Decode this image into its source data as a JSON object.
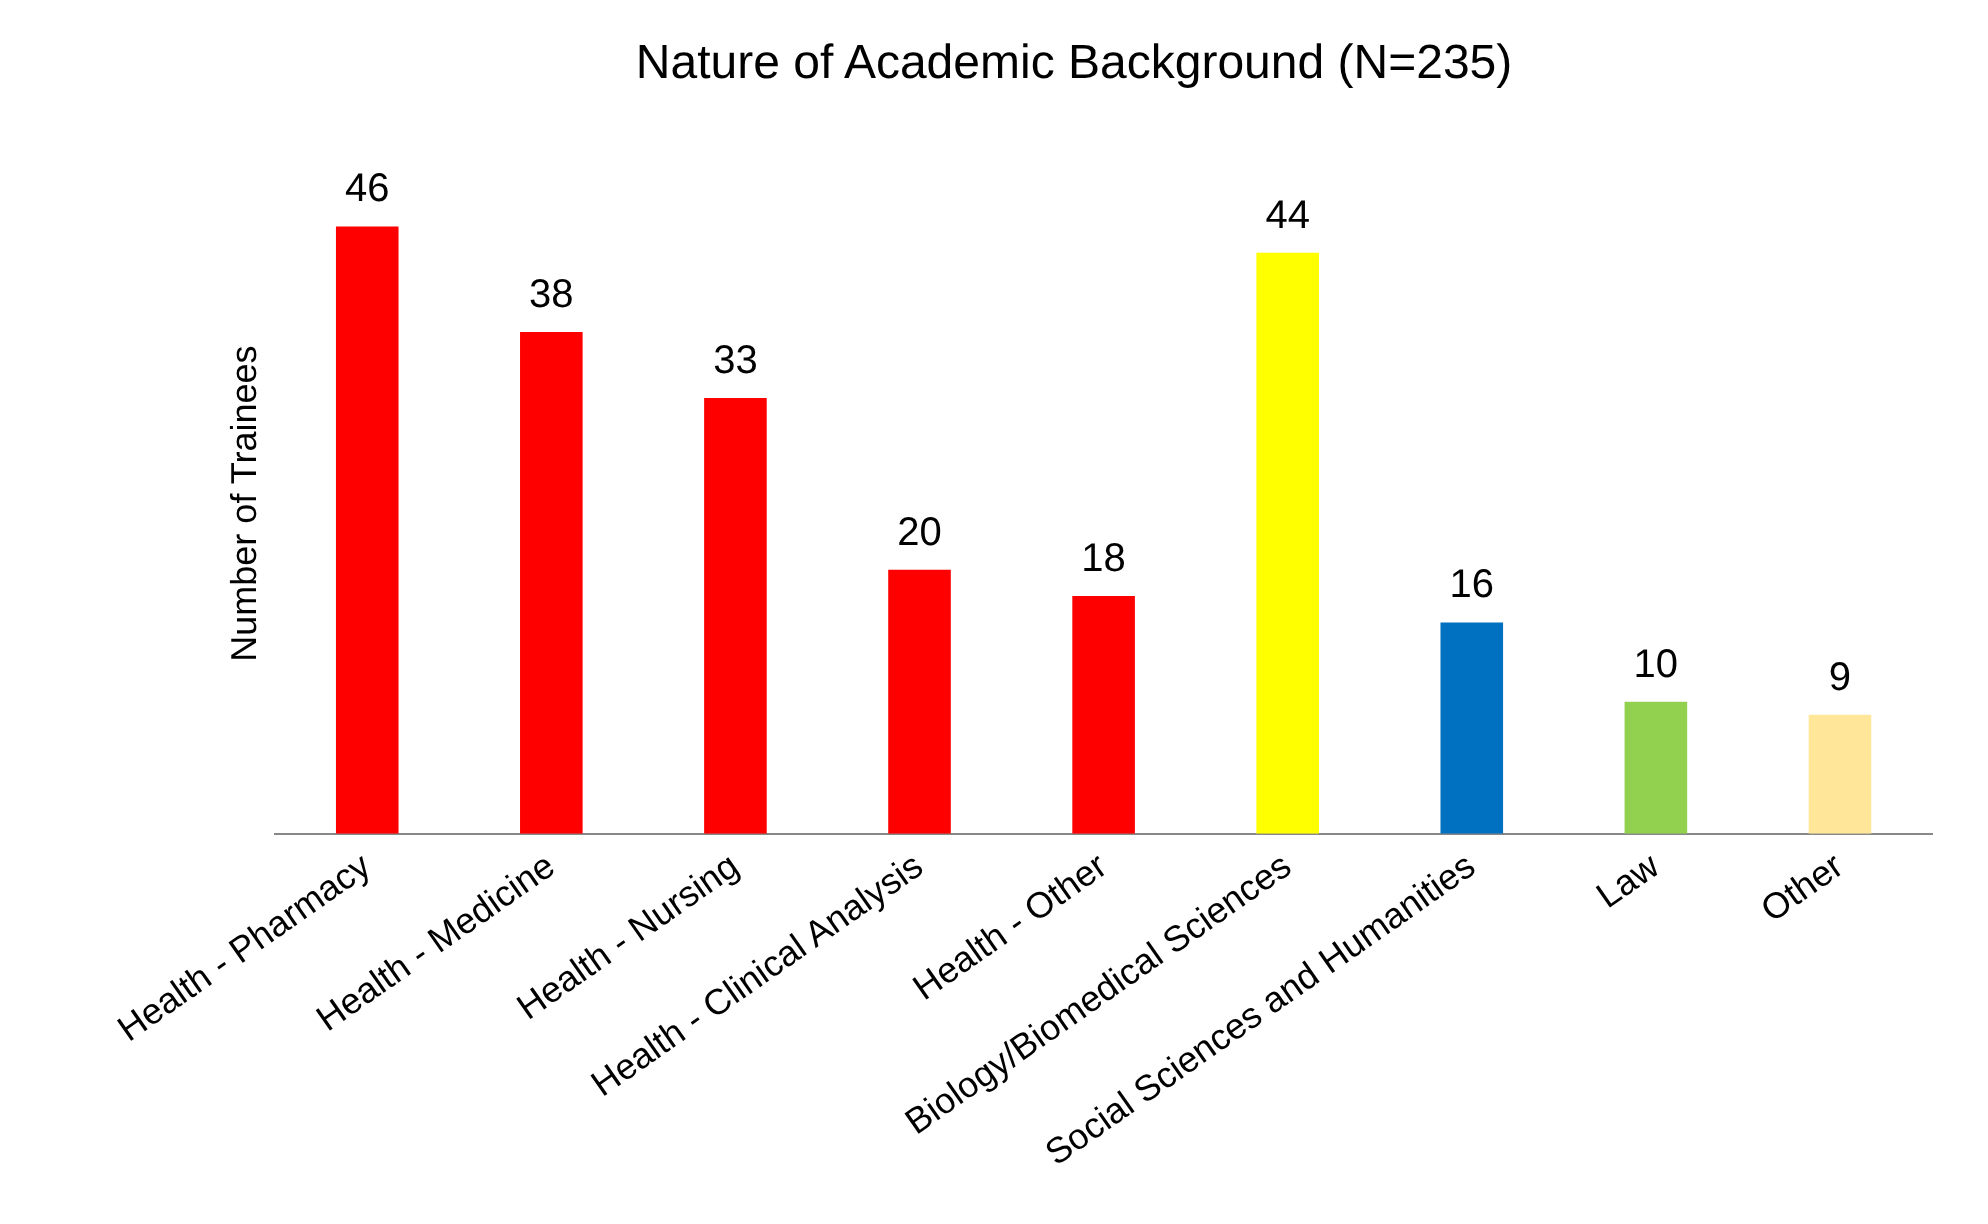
{
  "chart_data": {
    "type": "bar",
    "title": "Nature of Academic Background (N=235)",
    "ylabel": "Number of Trainees",
    "categories": [
      "Health - Pharmacy",
      "Health - Medicine",
      "Health - Nursing",
      "Health - Clinical Analysis",
      "Health - Other",
      "Biology/Biomedical Sciences",
      "Social Sciences and Humanities",
      "Law",
      "Other"
    ],
    "values": [
      46,
      38,
      33,
      20,
      18,
      44,
      16,
      10,
      9
    ],
    "colors": [
      "#ff0000",
      "#ff0000",
      "#ff0000",
      "#ff0000",
      "#ff0000",
      "#ffff00",
      "#0070c0",
      "#92d050",
      "#ffe699"
    ],
    "data_labels": true,
    "grid": false,
    "legend": false
  }
}
